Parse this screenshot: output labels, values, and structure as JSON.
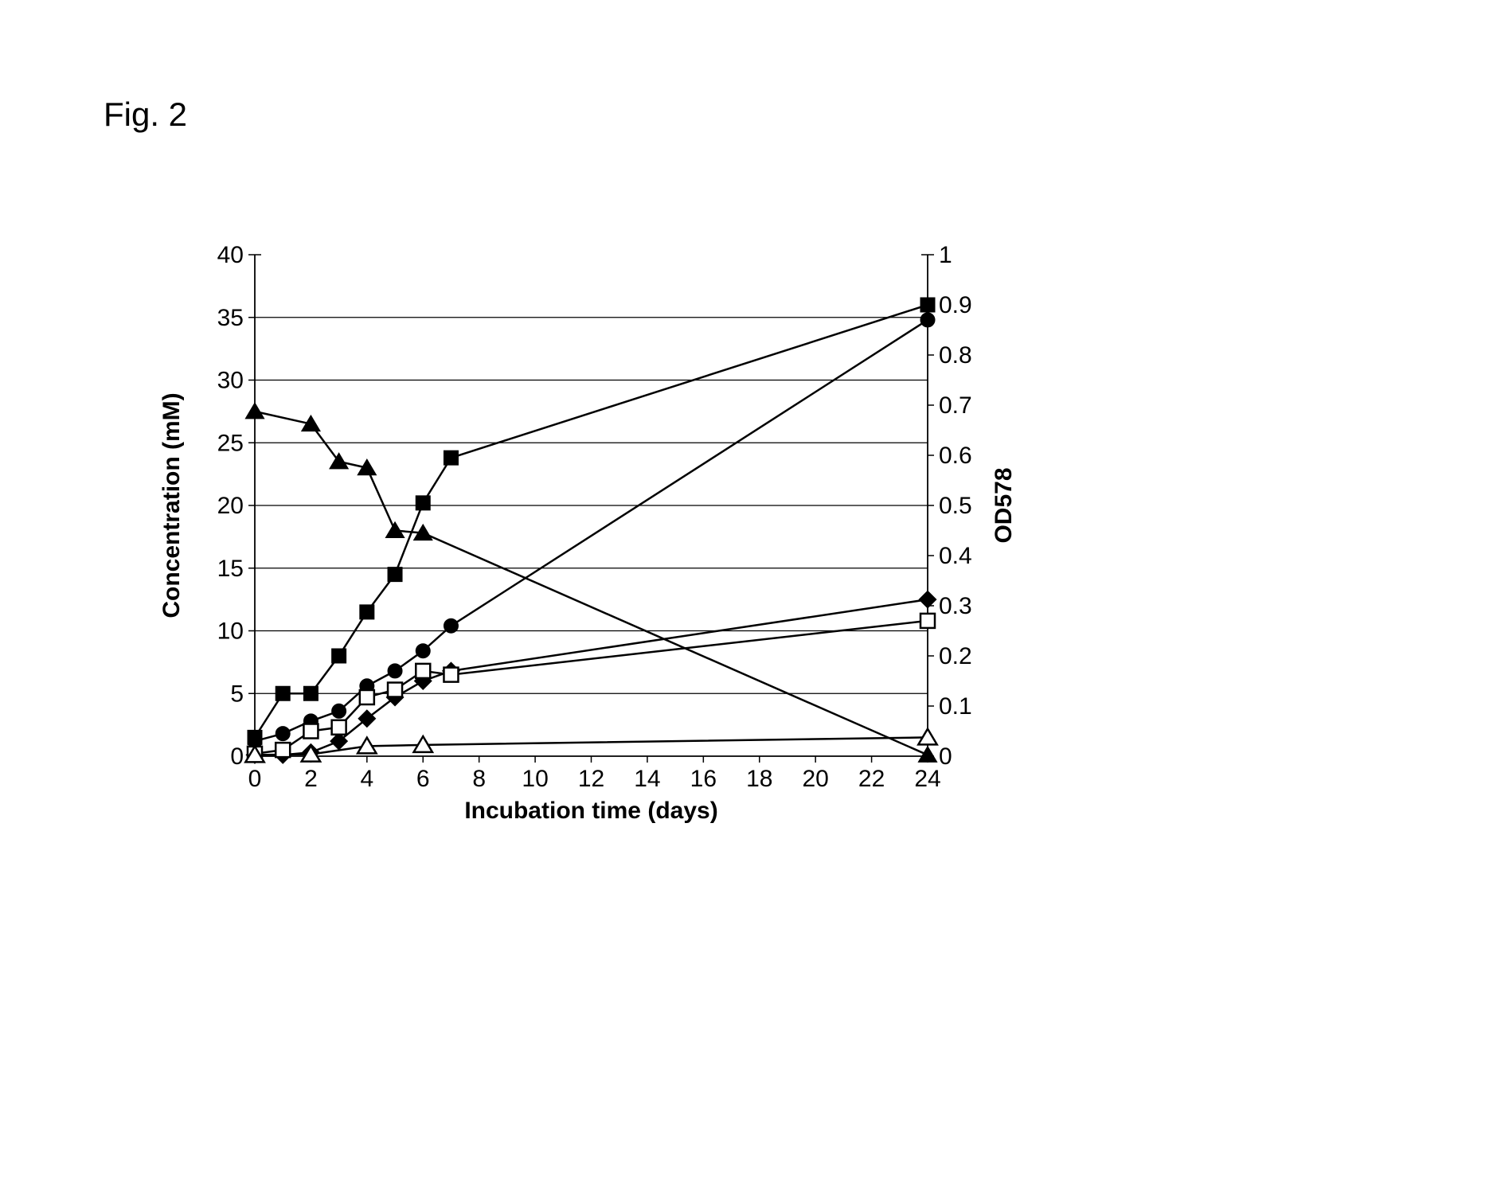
{
  "figure_label": "Fig. 2",
  "chart": {
    "type": "line",
    "background_color": "#ffffff",
    "grid_color": "#000000",
    "axis_color": "#000000",
    "line_color": "#000000",
    "xlabel": "Incubation time (days)",
    "ylabel_left": "Concentration (mM)",
    "ylabel_right": "OD578",
    "label_fontsize": 30,
    "tick_fontsize": 30,
    "x_ticks": [
      0,
      2,
      4,
      6,
      8,
      10,
      12,
      14,
      16,
      18,
      20,
      22,
      24
    ],
    "x_positions": [
      0,
      1,
      2,
      3,
      4,
      5,
      6,
      7,
      8,
      9,
      10,
      11,
      12
    ],
    "y_left_ticks": [
      0,
      5,
      10,
      15,
      20,
      25,
      30,
      35,
      40
    ],
    "y_right_ticks": [
      0,
      0.1,
      0.2,
      0.3,
      0.4,
      0.5,
      0.6,
      0.7,
      0.8,
      0.9,
      1
    ],
    "y_left_lim": [
      0,
      40
    ],
    "y_right_lim": [
      0,
      1
    ],
    "x_lim": [
      0,
      12
    ],
    "horizontal_gridlines": [
      5,
      10,
      15,
      20,
      25,
      30,
      35
    ],
    "line_width": 2.5,
    "marker_size": 9,
    "series": [
      {
        "name": "filled-triangle",
        "marker": "triangle-filled",
        "axis": "left",
        "color": "#000000",
        "x": [
          0,
          1,
          1.5,
          2,
          2.5,
          3,
          12
        ],
        "y": [
          27.5,
          26.5,
          23.5,
          23,
          18,
          17.8,
          0.1
        ]
      },
      {
        "name": "filled-square",
        "marker": "square-filled",
        "axis": "left",
        "color": "#000000",
        "x": [
          0,
          0.5,
          1,
          1.5,
          2,
          2.5,
          3,
          3.5,
          12
        ],
        "y": [
          1.5,
          5,
          5,
          8,
          11.5,
          14.5,
          20.2,
          23.8,
          36
        ]
      },
      {
        "name": "filled-circle",
        "marker": "circle-filled",
        "axis": "right",
        "color": "#000000",
        "x": [
          0,
          0.5,
          1,
          1.5,
          2,
          2.5,
          3,
          3.5,
          12
        ],
        "y": [
          0.03,
          0.045,
          0.07,
          0.09,
          0.14,
          0.17,
          0.21,
          0.26,
          0.87
        ]
      },
      {
        "name": "filled-diamond",
        "marker": "diamond-filled",
        "axis": "left",
        "color": "#000000",
        "x": [
          0,
          0.5,
          1,
          1.5,
          2,
          2.5,
          3,
          3.5,
          12
        ],
        "y": [
          0.1,
          0.1,
          0.3,
          1.2,
          3,
          4.7,
          6,
          6.8,
          12.5
        ]
      },
      {
        "name": "open-square",
        "marker": "square-open",
        "axis": "left",
        "color": "#000000",
        "x": [
          0,
          0.5,
          1,
          1.5,
          2,
          2.5,
          3,
          3.5,
          12
        ],
        "y": [
          0.2,
          0.5,
          2,
          2.3,
          4.7,
          5.3,
          6.8,
          6.5,
          10.8
        ]
      },
      {
        "name": "open-triangle",
        "marker": "triangle-open",
        "axis": "left",
        "color": "#000000",
        "x": [
          0,
          1,
          2,
          3,
          12
        ],
        "y": [
          0.1,
          0.15,
          0.8,
          0.9,
          1.5
        ]
      }
    ]
  }
}
